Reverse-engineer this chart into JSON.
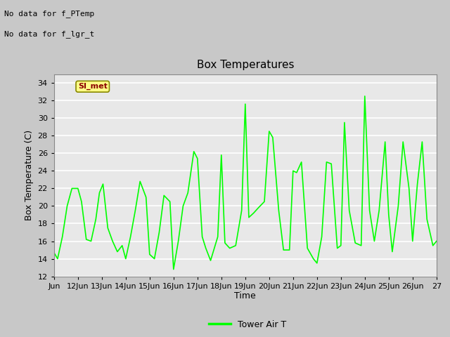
{
  "title": "Box Temperatures",
  "ylabel": "Box Temperature (C)",
  "xlabel": "Time",
  "ylim": [
    12,
    35
  ],
  "xlim": [
    11,
    27
  ],
  "yticks": [
    12,
    14,
    16,
    18,
    20,
    22,
    24,
    26,
    28,
    30,
    32,
    34
  ],
  "xtick_labels": [
    "Jun",
    "12Jun",
    "13Jun",
    "14Jun",
    "15Jun",
    "16Jun",
    "17Jun",
    "18Jun",
    "19Jun",
    "20Jun",
    "21Jun",
    "22Jun",
    "23Jun",
    "24Jun",
    "25Jun",
    "26Jun",
    "27"
  ],
  "xtick_positions": [
    11,
    12,
    13,
    14,
    15,
    16,
    17,
    18,
    19,
    20,
    21,
    22,
    23,
    24,
    25,
    26,
    27
  ],
  "line_color": "#00FF00",
  "line_width": 1.2,
  "fig_bg_color": "#C8C8C8",
  "plot_bg_color": "#E8E8E8",
  "no_data_texts": [
    "No data for f_PTemp",
    "No data for f_lgr_t"
  ],
  "si_met_label": "SI_met",
  "legend_label": "Tower Air T",
  "title_fontsize": 11,
  "label_fontsize": 9,
  "tick_fontsize": 8,
  "x_data": [
    11.0,
    11.15,
    11.35,
    11.55,
    11.75,
    12.0,
    12.15,
    12.35,
    12.55,
    12.75,
    12.9,
    13.05,
    13.25,
    13.45,
    13.65,
    13.85,
    14.0,
    14.2,
    14.4,
    14.6,
    14.85,
    15.0,
    15.2,
    15.4,
    15.6,
    15.85,
    16.0,
    16.2,
    16.4,
    16.6,
    16.85,
    17.0,
    17.2,
    17.35,
    17.55,
    17.85,
    18.0,
    18.15,
    18.35,
    18.6,
    18.85,
    19.0,
    19.15,
    19.35,
    19.55,
    19.8,
    20.0,
    20.15,
    20.4,
    20.6,
    20.85,
    21.0,
    21.15,
    21.35,
    21.6,
    21.85,
    22.0,
    22.2,
    22.4,
    22.6,
    22.85,
    23.0,
    23.15,
    23.35,
    23.6,
    23.85,
    24.0,
    24.2,
    24.4,
    24.6,
    24.85,
    25.0,
    25.15,
    25.4,
    25.6,
    25.85,
    26.0,
    26.2,
    26.4,
    26.6,
    26.85,
    27.0
  ],
  "y_data": [
    14.7,
    14.0,
    16.5,
    20.0,
    22.0,
    22.0,
    20.5,
    16.2,
    16.0,
    18.5,
    21.5,
    22.5,
    17.5,
    16.0,
    14.8,
    15.5,
    14.0,
    16.5,
    19.5,
    22.8,
    21.0,
    14.5,
    14.0,
    17.0,
    21.2,
    20.5,
    12.8,
    16.0,
    20.0,
    21.5,
    26.2,
    25.4,
    16.5,
    15.2,
    13.8,
    16.5,
    25.8,
    15.8,
    15.2,
    15.5,
    19.5,
    31.6,
    18.7,
    19.2,
    19.8,
    20.5,
    28.5,
    27.8,
    19.5,
    15.0,
    15.0,
    24.0,
    23.8,
    25.0,
    15.2,
    14.0,
    13.5,
    16.5,
    25.0,
    24.8,
    15.2,
    15.5,
    29.5,
    19.5,
    15.8,
    15.5,
    32.5,
    19.5,
    16.0,
    19.5,
    27.3,
    19.0,
    14.8,
    20.0,
    27.3,
    22.0,
    16.0,
    22.5,
    27.3,
    18.5,
    15.5,
    16.0
  ]
}
